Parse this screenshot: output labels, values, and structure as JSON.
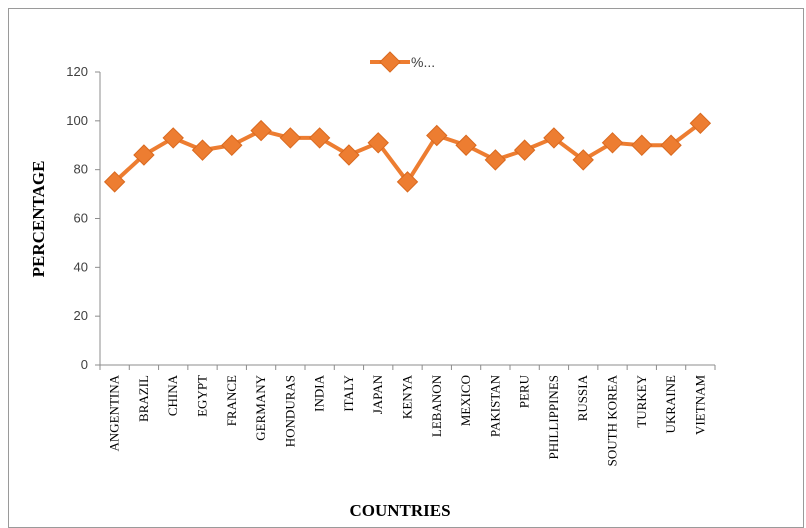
{
  "chart_data": {
    "type": "line",
    "xlabel": "COUNTRIES",
    "ylabel": "PERCENTAGE",
    "ylim": [
      0,
      120
    ],
    "yticks": [
      0,
      20,
      40,
      60,
      80,
      100,
      120
    ],
    "grid": false,
    "legend_position": "top",
    "categories": [
      "ANGENTINA",
      "BRAZIL",
      "CHINA",
      "EGYPT",
      "FRANCE",
      "GERMANY",
      "HONDURAS",
      "INDIA",
      "ITALY",
      "JAPAN",
      "KENYA",
      "LEBANON",
      "MEXICO",
      "PAKISTAN",
      "PERU",
      "PHILLIPPINES",
      "RUSSIA",
      "SOUTH KOREA",
      "TURKEY",
      "UKRAINE",
      "VIETNAM"
    ],
    "series": [
      {
        "name": "%...",
        "color": "#ED7D31",
        "marker": "diamond",
        "values": [
          75,
          86,
          93,
          88,
          90,
          96,
          93,
          93,
          86,
          91,
          75,
          94,
          90,
          84,
          88,
          93,
          84,
          91,
          90,
          90,
          99
        ]
      }
    ]
  }
}
